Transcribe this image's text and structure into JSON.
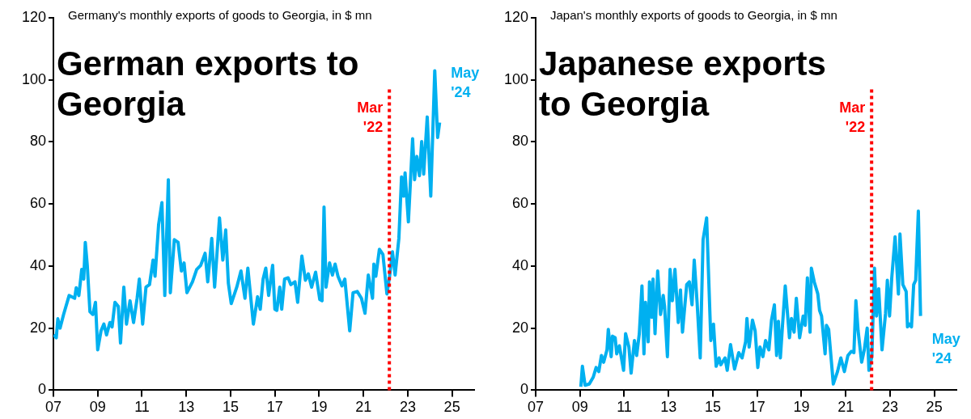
{
  "chart_data": [
    {
      "type": "line",
      "title": "German exports to Georgia",
      "subtitle": "Germany's monthly exports of goods to Georgia, in $ mn",
      "series": [
        {
          "color": "#00b0f0",
          "x": [
            2007.0,
            2007.13,
            2007.2,
            2007.3,
            2007.46,
            2007.71,
            2007.96,
            2008.03,
            2008.15,
            2008.28,
            2008.37,
            2008.44,
            2008.53,
            2008.65,
            2008.78,
            2008.9,
            2009.0,
            2009.15,
            2009.28,
            2009.4,
            2009.55,
            2009.65,
            2009.78,
            2009.93,
            2010.03,
            2010.18,
            2010.3,
            2010.46,
            2010.62,
            2010.78,
            2010.88,
            2011.03,
            2011.18,
            2011.34,
            2011.5,
            2011.59,
            2011.75,
            2011.9,
            2012.03,
            2012.19,
            2012.28,
            2012.46,
            2012.63,
            2012.78,
            2012.9,
            2013.03,
            2013.28,
            2013.47,
            2013.65,
            2013.85,
            2013.97,
            2014.15,
            2014.28,
            2014.5,
            2014.65,
            2014.78,
            2014.9,
            2015.03,
            2015.28,
            2015.47,
            2015.65,
            2015.78,
            2016.03,
            2016.22,
            2016.34,
            2016.47,
            2016.59,
            2016.72,
            2016.9,
            2017.0,
            2017.09,
            2017.22,
            2017.31,
            2017.44,
            2017.6,
            2017.72,
            2017.91,
            2018.03,
            2018.22,
            2018.38,
            2018.51,
            2018.66,
            2018.84,
            2019.03,
            2019.13,
            2019.22,
            2019.31,
            2019.47,
            2019.6,
            2019.72,
            2019.85,
            2020.03,
            2020.16,
            2020.38,
            2020.53,
            2020.72,
            2020.91,
            2021.07,
            2021.22,
            2021.41,
            2021.47,
            2021.56,
            2021.72,
            2021.88,
            2022.06,
            2022.18,
            2022.31,
            2022.43,
            2022.6,
            2022.72,
            2022.81,
            2022.88,
            2023.03,
            2023.22,
            2023.31,
            2023.41,
            2023.53,
            2023.63,
            2023.72,
            2023.88,
            2024.04,
            2024.22,
            2024.35,
            2024.44
          ],
          "values": [
            17.8,
            16.9,
            23,
            20,
            24.4,
            30.5,
            29.6,
            33,
            30.5,
            38.9,
            35.8,
            47.6,
            40.2,
            25.3,
            24.4,
            28.3,
            13,
            19.1,
            21.3,
            17.8,
            21.8,
            20.4,
            28.3,
            27,
            15.2,
            33.2,
            21.3,
            28.8,
            21.8,
            29.6,
            35.8,
            21.3,
            33.2,
            34,
            41.9,
            36.7,
            53.3,
            60.4,
            30.5,
            67.8,
            31.4,
            48.5,
            47.6,
            38.4,
            41,
            31.4,
            34.9,
            38.9,
            40.2,
            44.1,
            34.9,
            48.9,
            33.2,
            55.5,
            41.9,
            51.6,
            34.5,
            27.9,
            33.2,
            38.4,
            29.6,
            39.3,
            21.3,
            30.1,
            26.1,
            35.8,
            39.3,
            30.5,
            40.2,
            26.1,
            25.7,
            33.2,
            26.1,
            35.8,
            36.2,
            34,
            34.9,
            28.3,
            43.2,
            35.4,
            37.5,
            33.2,
            38,
            29.2,
            28.8,
            59,
            33.2,
            41,
            37.1,
            40.6,
            36.7,
            33.6,
            35.8,
            19.1,
            31.4,
            31.8,
            29.6,
            24.8,
            37.1,
            29.6,
            40.6,
            36.7,
            45.4,
            43.7,
            31,
            36.7,
            44.6,
            37.1,
            48.9,
            68.7,
            62.5,
            70,
            54.2,
            81,
            67.8,
            75.3,
            69.1,
            80.1,
            69.6,
            88,
            62.5,
            102.9,
            81.4,
            86.2
          ]
        }
      ],
      "xlim": [
        2007,
        2026
      ],
      "xticks": [
        {
          "value": 2007,
          "label": "07"
        },
        {
          "value": 2009,
          "label": "09"
        },
        {
          "value": 2011,
          "label": "11"
        },
        {
          "value": 2013,
          "label": "13"
        },
        {
          "value": 2015,
          "label": "15"
        },
        {
          "value": 2017,
          "label": "17"
        },
        {
          "value": 2019,
          "label": "19"
        },
        {
          "value": 2021,
          "label": "21"
        },
        {
          "value": 2023,
          "label": "23"
        },
        {
          "value": 2025,
          "label": "25"
        }
      ],
      "ylim": [
        0,
        120
      ],
      "yticks": [
        0,
        20,
        40,
        60,
        80,
        100,
        120
      ],
      "grid": false,
      "legend": false,
      "ref_lines": [
        {
          "axis": "x",
          "value": 2022.17,
          "label": "Mar\n'22",
          "color": "#ff0000",
          "line_style": "dotted"
        }
      ],
      "annotations": [
        {
          "text": "May\n'24",
          "x": 2024.44,
          "y": 86.2
        }
      ]
    },
    {
      "type": "line",
      "title": "Japanese exports to Georgia",
      "subtitle": "Japan's monthly exports of goods to Georgia, in $ mn",
      "series": [
        {
          "color": "#00b0f0",
          "x": [
            2009.04,
            2009.11,
            2009.23,
            2009.42,
            2009.6,
            2009.73,
            2009.85,
            2009.97,
            2010.07,
            2010.22,
            2010.28,
            2010.41,
            2010.47,
            2010.59,
            2010.66,
            2010.78,
            2010.97,
            2011.06,
            2011.21,
            2011.31,
            2011.46,
            2011.56,
            2011.68,
            2011.8,
            2011.89,
            2011.96,
            2012.08,
            2012.14,
            2012.24,
            2012.3,
            2012.39,
            2012.51,
            2012.64,
            2012.76,
            2012.82,
            2012.95,
            2013.07,
            2013.17,
            2013.29,
            2013.44,
            2013.54,
            2013.63,
            2013.82,
            2013.94,
            2014.06,
            2014.16,
            2014.29,
            2014.43,
            2014.56,
            2014.72,
            2014.91,
            2015.03,
            2015.15,
            2015.28,
            2015.36,
            2015.55,
            2015.65,
            2015.8,
            2015.98,
            2016.17,
            2016.32,
            2016.48,
            2016.54,
            2016.64,
            2016.79,
            2016.91,
            2017.03,
            2017.13,
            2017.26,
            2017.38,
            2017.53,
            2017.65,
            2017.78,
            2017.88,
            2017.96,
            2018.05,
            2018.15,
            2018.27,
            2018.46,
            2018.55,
            2018.67,
            2018.77,
            2018.92,
            2019.08,
            2019.17,
            2019.27,
            2019.39,
            2019.45,
            2019.58,
            2019.74,
            2019.82,
            2019.91,
            2020.07,
            2020.13,
            2020.23,
            2020.44,
            2020.63,
            2020.78,
            2020.94,
            2021.1,
            2021.25,
            2021.37,
            2021.46,
            2021.56,
            2021.72,
            2021.84,
            2021.97,
            2022.05,
            2022.18,
            2022.3,
            2022.39,
            2022.49,
            2022.64,
            2022.8,
            2022.88,
            2022.98,
            2023.08,
            2023.23,
            2023.38,
            2023.45,
            2023.58,
            2023.73,
            2023.79,
            2023.88,
            2023.97,
            2024.07,
            2024.16,
            2024.28,
            2024.38
          ],
          "values": [
            1.1,
            7.7,
            1.6,
            2,
            4.2,
            7.3,
            6,
            11.2,
            9,
            13,
            19.6,
            10.8,
            17.4,
            16.9,
            11.7,
            14.3,
            6.4,
            18.2,
            13.9,
            5.5,
            16,
            11.2,
            18.2,
            33.6,
            11.7,
            28.3,
            15.6,
            34.9,
            23.5,
            35.8,
            18.2,
            38.4,
            24.4,
            30.5,
            27,
            10.8,
            38.9,
            28.8,
            38.9,
            21.8,
            32.3,
            18.7,
            34,
            34.9,
            27.5,
            41.9,
            28.3,
            10.4,
            48.5,
            55.5,
            16,
            21.3,
            7.7,
            10.4,
            8.2,
            10.4,
            6.4,
            14.7,
            6.8,
            12.1,
            10.4,
            15.6,
            23.1,
            13.9,
            22.6,
            19.1,
            7.3,
            13.9,
            10.8,
            16,
            13,
            22.6,
            27.5,
            11.2,
            22.2,
            10.4,
            21.3,
            33.6,
            16.9,
            23.1,
            18.7,
            29.6,
            16.9,
            23.9,
            20.9,
            36.2,
            18.7,
            39.3,
            34.9,
            31,
            25.7,
            23.9,
            11.7,
            20.9,
            19.6,
            2,
            6,
            10.4,
            6,
            11.2,
            12.5,
            12.1,
            28.8,
            19.1,
            9,
            13,
            20,
            6.4,
            10.8,
            39.3,
            23.9,
            32.7,
            13,
            24.8,
            35.4,
            23.9,
            36.2,
            49.4,
            31,
            50.3,
            34,
            31.8,
            20.4,
            21.3,
            20.4,
            34,
            35.4,
            57.7,
            23.9
          ]
        }
      ],
      "xlim": [
        2007,
        2026
      ],
      "xticks": [
        {
          "value": 2007,
          "label": "07"
        },
        {
          "value": 2009,
          "label": "09"
        },
        {
          "value": 2011,
          "label": "11"
        },
        {
          "value": 2013,
          "label": "13"
        },
        {
          "value": 2015,
          "label": "15"
        },
        {
          "value": 2017,
          "label": "17"
        },
        {
          "value": 2019,
          "label": "19"
        },
        {
          "value": 2021,
          "label": "21"
        },
        {
          "value": 2023,
          "label": "23"
        },
        {
          "value": 2025,
          "label": "25"
        }
      ],
      "ylim": [
        0,
        120
      ],
      "yticks": [
        0,
        20,
        40,
        60,
        80,
        100,
        120
      ],
      "grid": false,
      "legend": false,
      "ref_lines": [
        {
          "axis": "x",
          "value": 2022.17,
          "label": "Mar\n'22",
          "color": "#ff0000",
          "line_style": "dotted"
        }
      ],
      "annotations": [
        {
          "text": "May\n'24",
          "x": 2024.38,
          "y": 23.9
        }
      ]
    }
  ]
}
